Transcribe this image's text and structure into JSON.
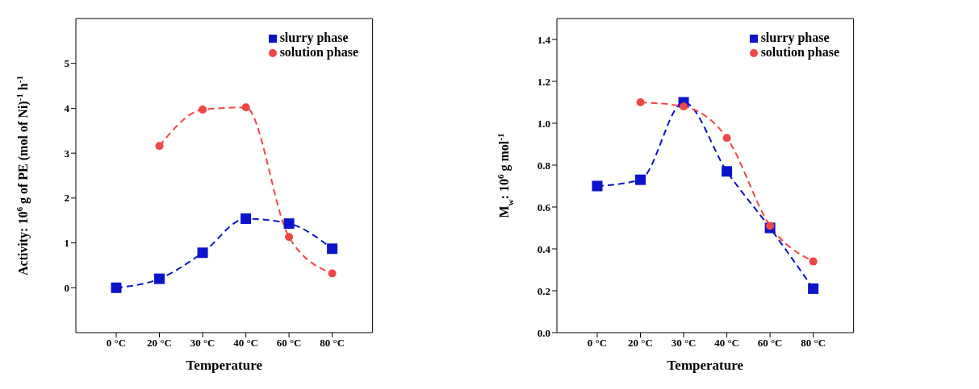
{
  "chart_data": [
    {
      "type": "line",
      "categories": [
        "0 °C",
        "20 °C",
        "30 °C",
        "40 °C",
        "60 °C",
        "80 °C"
      ],
      "xlabel": "Temperature",
      "ylabel": "Activity: 10$^{6}$ g of PE (mol of Ni)$^{-1}$ h$^{-1}$",
      "ylim": [
        -1,
        6
      ],
      "yticks": [
        0,
        1,
        2,
        3,
        4,
        5
      ],
      "legend": "top right",
      "line_style": "dashed",
      "grid": false,
      "series": [
        {
          "name": "slurry phase",
          "color": "#0a14c8",
          "marker": "square",
          "values": [
            0,
            0.2,
            0.78,
            1.54,
            1.43,
            0.87
          ]
        },
        {
          "name": "solution phase",
          "color": "#f04646",
          "marker": "circle",
          "values": [
            null,
            3.16,
            3.97,
            4.02,
            1.13,
            0.32
          ]
        }
      ]
    },
    {
      "type": "line",
      "categories": [
        "0 °C",
        "20 °C",
        "30 °C",
        "40 °C",
        "60 °C",
        "80 °C"
      ],
      "xlabel": "Temperature",
      "ylabel": "M$_{w}$: 10$^{6}$ g mol$^{-1}$",
      "ylim": [
        0,
        1.5
      ],
      "yticks": [
        {
          "value": 0,
          "label": "0.0"
        },
        {
          "value": 0.2,
          "label": "0.2"
        },
        {
          "value": 0.4,
          "label": "0.4"
        },
        {
          "value": 0.6,
          "label": "0.6"
        },
        {
          "value": 0.8,
          "label": "0.8"
        },
        {
          "value": 1.0,
          "label": "1.0"
        },
        {
          "value": 1.2,
          "label": "1.2"
        },
        {
          "value": 1.4,
          "label": "1.4"
        }
      ],
      "legend": "top right",
      "line_style": "dashed",
      "grid": false,
      "series": [
        {
          "name": "slurry phase",
          "color": "#0a14c8",
          "marker": "square",
          "values": [
            0.7,
            0.73,
            1.1,
            0.77,
            0.5,
            0.21
          ]
        },
        {
          "name": "solution phase",
          "color": "#f04646",
          "marker": "circle",
          "values": [
            null,
            1.1,
            1.08,
            0.93,
            0.51,
            0.34
          ]
        }
      ]
    }
  ]
}
